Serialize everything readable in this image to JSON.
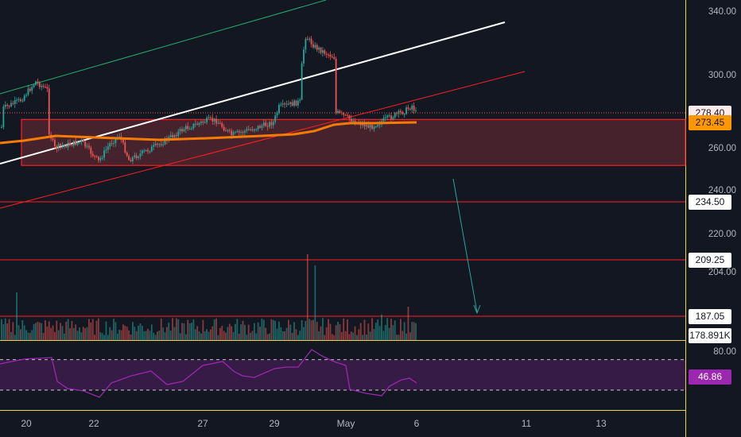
{
  "chart_data": {
    "type": "candlestick",
    "price_axis": {
      "ticks": [
        "340.00",
        "300.00",
        "260.00",
        "240.00",
        "220.00",
        "204.00",
        "80.00"
      ],
      "tick_values": [
        340,
        300,
        260,
        240,
        220,
        204
      ],
      "rsi_tick": "80.00",
      "rsi_tick_value": 80
    },
    "date_axis": {
      "labels": [
        "20",
        "22",
        "27",
        "29",
        "May",
        "6",
        "11",
        "13"
      ]
    },
    "tags": [
      {
        "label": "278.40",
        "value": 278.4,
        "color": "#fcebea"
      },
      {
        "label": "273.45",
        "value": 273.45,
        "color": "#ff9800"
      },
      {
        "label": "234.50",
        "value": 234.5,
        "color": "#ffffff"
      },
      {
        "label": "209.25",
        "value": 209.25,
        "color": "#ffffff"
      },
      {
        "label": "187.05",
        "value": 187.05,
        "color": "#ffffff"
      },
      {
        "label": "178.891K",
        "value": null,
        "color": "#ffffff"
      },
      {
        "label": "46.86",
        "value": 46.86,
        "color": "#9c27b0"
      }
    ],
    "horizontal_levels": [
      234.5,
      209.25,
      187.05
    ],
    "support_zone": {
      "from": 252,
      "to": 275
    },
    "indicators": {
      "moving_average": "orange",
      "rsi": {
        "upper_band": 70,
        "lower_band": 30,
        "last": 46.86
      }
    },
    "colors": {
      "up": "#26a69a",
      "down": "#ef5350",
      "level": "#ff1f1f",
      "ma": "#f57c00",
      "trend_white": "#ffffff",
      "trend_green": "#22b06b",
      "rsi": "#9c27b0",
      "background": "#131722"
    }
  }
}
